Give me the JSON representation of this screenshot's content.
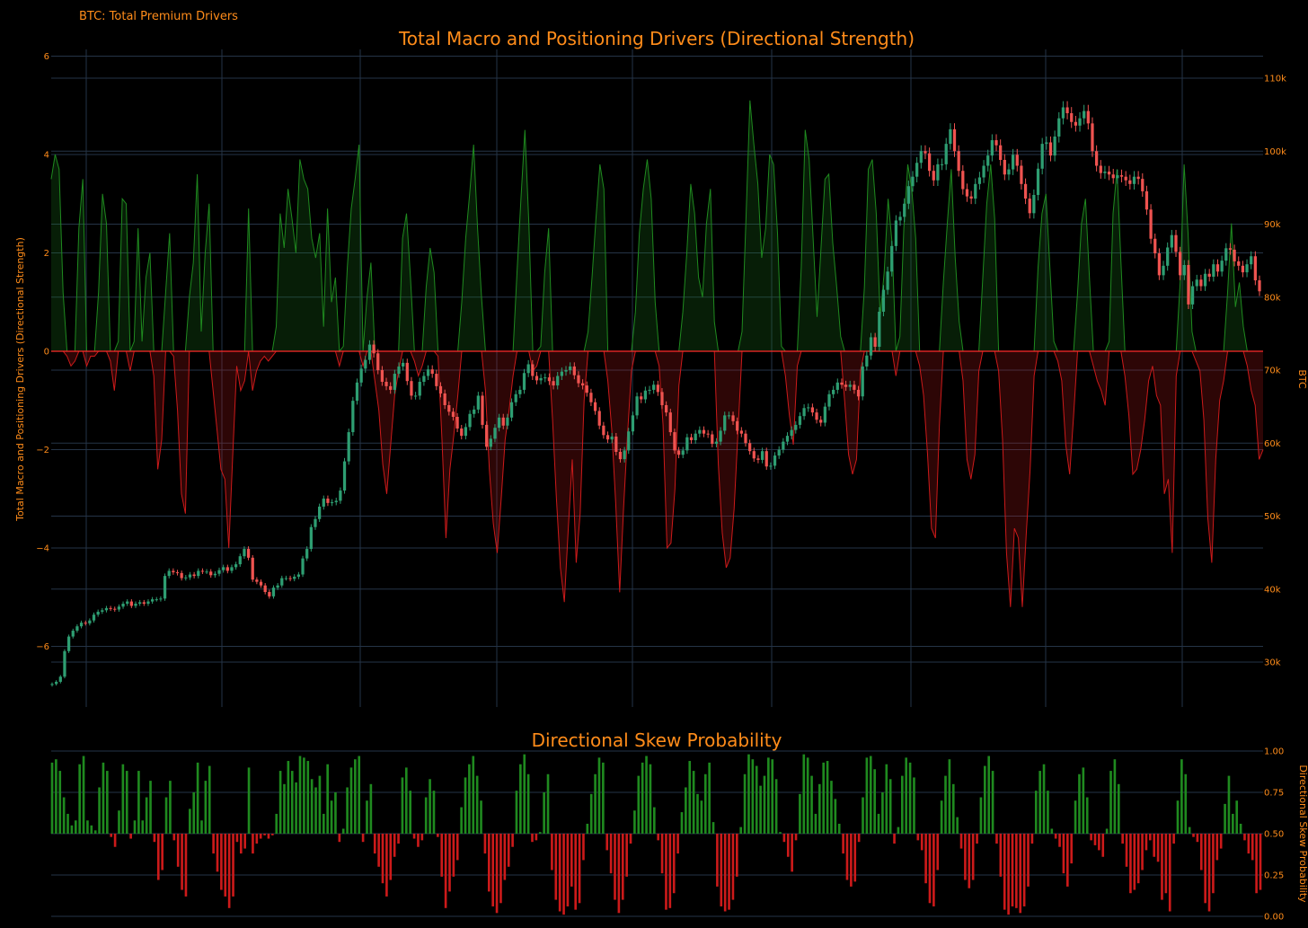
{
  "header": {
    "dashboard_label": "BTC: Total Premium Drivers"
  },
  "colors": {
    "background": "#000000",
    "text": "#ff8c1a",
    "grid": "#253447",
    "positive": "#1f8a1f",
    "negative": "#cc1a1a",
    "candle_up": "#2e9e72",
    "candle_down": "#ef5350"
  },
  "chart_data": [
    {
      "type": "area",
      "title": "Total Macro and Positioning Drivers (Directional Strength)",
      "ylabel": "Total Macro and Positioning Drivers (Directional Strength)",
      "ylim": [
        -6.6,
        6.0
      ],
      "yticks": [
        6,
        4,
        2,
        0,
        -2,
        -4,
        -6
      ],
      "ytick_labels": [
        "6",
        "4",
        "2",
        "0",
        "−2",
        "−4",
        "−6"
      ],
      "grid": true,
      "series": [
        {
          "name": "",
          "style": "filled area above and below zero",
          "values": [
            3.5,
            4.0,
            3.7,
            1.2,
            -0.1,
            -0.3,
            -0.2,
            2.5,
            3.5,
            -0.3,
            -0.1,
            -0.1,
            1.2,
            3.2,
            2.6,
            -0.2,
            -0.8,
            0.2,
            3.1,
            3.0,
            -0.4,
            0.2,
            2.5,
            0.2,
            1.5,
            2.0,
            -0.5,
            -2.4,
            -1.8,
            1.2,
            2.4,
            -0.1,
            -1.2,
            -2.9,
            -3.3,
            1.1,
            1.8,
            3.6,
            0.4,
            2.0,
            3.0,
            -0.8,
            -1.6,
            -2.4,
            -2.6,
            -4.0,
            -2.1,
            -0.3,
            -0.8,
            -0.6,
            2.9,
            -0.8,
            -0.4,
            -0.2,
            -0.1,
            -0.2,
            -0.1,
            0.5,
            2.8,
            2.1,
            3.3,
            2.7,
            2.0,
            3.9,
            3.5,
            3.3,
            2.3,
            1.9,
            2.4,
            0.5,
            2.9,
            1.0,
            1.5,
            -0.3,
            0.1,
            1.7,
            2.9,
            3.5,
            4.2,
            -0.3,
            1.1,
            1.8,
            -0.6,
            -1.2,
            -2.3,
            -2.9,
            -1.9,
            -0.9,
            -0.4,
            2.3,
            2.8,
            1.5,
            -0.2,
            -0.5,
            -0.3,
            1.3,
            2.1,
            1.6,
            -0.1,
            -1.8,
            -3.8,
            -2.4,
            -1.7,
            -0.9,
            1.0,
            2.3,
            3.2,
            4.2,
            2.5,
            1.1,
            -0.8,
            -2.4,
            -3.5,
            -4.1,
            -3.0,
            -1.8,
            -1.2,
            -0.5,
            1.6,
            3.1,
            4.5,
            2.6,
            -0.4,
            -0.3,
            0.1,
            1.6,
            2.5,
            -1.4,
            -3.0,
            -4.4,
            -5.1,
            -3.6,
            -2.2,
            -4.3,
            -3.3,
            -1.0,
            0.4,
            1.5,
            2.7,
            3.8,
            3.3,
            -0.6,
            -1.6,
            -3.1,
            -4.9,
            -3.2,
            -1.7,
            -0.4,
            0.8,
            2.4,
            3.3,
            3.9,
            3.1,
            1.0,
            -0.3,
            -1.5,
            -4.0,
            -3.9,
            -2.8,
            -0.7,
            0.8,
            2.0,
            3.4,
            2.8,
            1.5,
            1.1,
            2.6,
            3.3,
            0.6,
            -2.3,
            -3.7,
            -4.4,
            -4.2,
            -3.2,
            -1.6,
            0.4,
            2.7,
            5.1,
            4.2,
            3.4,
            1.9,
            2.5,
            4.0,
            3.8,
            2.4,
            0.1,
            -0.5,
            -1.3,
            -1.9,
            -0.3,
            1.7,
            4.5,
            3.9,
            2.3,
            0.7,
            2.1,
            3.5,
            3.6,
            2.2,
            1.3,
            0.3,
            -1.0,
            -2.1,
            -2.5,
            -2.2,
            -0.4,
            1.3,
            3.7,
            3.9,
            2.8,
            0.7,
            1.6,
            3.1,
            2.2,
            -0.5,
            0.3,
            2.5,
            3.8,
            3.3,
            2.3,
            -0.3,
            -0.9,
            -2.1,
            -3.6,
            -3.8,
            -1.5,
            1.4,
            2.6,
            3.7,
            1.9,
            0.6,
            -0.6,
            -2.2,
            -2.6,
            -2.1,
            -0.4,
            1.5,
            3.0,
            3.8,
            2.7,
            -0.4,
            -1.8,
            -4.1,
            -5.2,
            -3.6,
            -3.8,
            -5.2,
            -3.7,
            -2.4,
            -0.5,
            1.7,
            2.8,
            3.2,
            1.7,
            0.2,
            -0.2,
            -0.6,
            -1.9,
            -2.5,
            -1.3,
            1.2,
            2.6,
            3.1,
            1.5,
            -0.3,
            -0.6,
            -0.8,
            -1.1,
            0.2,
            2.8,
            3.7,
            1.8,
            -0.5,
            -1.3,
            -2.5,
            -2.4,
            -2.0,
            -1.4,
            -0.6,
            -0.3,
            -0.9,
            -1.1,
            -2.9,
            -2.6,
            -4.1,
            -0.5,
            1.4,
            3.8,
            2.4,
            0.4,
            -0.2,
            -0.4,
            -1.4,
            -3.4,
            -4.3,
            -2.2,
            -1.0,
            -0.6,
            1.2,
            2.6,
            0.9,
            1.4,
            0.5,
            -0.3,
            -0.8,
            -1.1,
            -2.2,
            -2.0
          ]
        }
      ]
    },
    {
      "type": "line",
      "title": "",
      "ylabel": "BTC",
      "ylim": [
        24000,
        113000
      ],
      "yticks": [
        110000,
        100000,
        90000,
        80000,
        70000,
        60000,
        50000,
        40000,
        30000
      ],
      "ytick_labels": [
        "110k",
        "100k",
        "90k",
        "80k",
        "70k",
        "60k",
        "50k",
        "40k",
        "30k"
      ],
      "series": [
        {
          "name": "",
          "style": "candlestick (close path shown)",
          "values": [
            27000,
            27300,
            28000,
            31500,
            33500,
            34300,
            34900,
            35400,
            35300,
            35700,
            36500,
            36900,
            37100,
            37400,
            37300,
            37200,
            37600,
            38000,
            38300,
            37700,
            38000,
            38200,
            38000,
            38300,
            38600,
            38600,
            38700,
            41800,
            42500,
            42300,
            42200,
            41500,
            41600,
            42000,
            41800,
            42500,
            42400,
            42400,
            41900,
            42100,
            42600,
            43000,
            42500,
            43000,
            43400,
            44500,
            45500,
            44300,
            41300,
            41000,
            40500,
            39600,
            39000,
            40200,
            40500,
            41500,
            41500,
            41400,
            41700,
            42000,
            44200,
            45500,
            48500,
            49600,
            51300,
            52400,
            51800,
            51900,
            52100,
            53500,
            57500,
            61500,
            65800,
            68300,
            70200,
            71400,
            73500,
            72300,
            70000,
            68400,
            67800,
            67300,
            69500,
            70500,
            71000,
            68500,
            66500,
            66500,
            68400,
            69200,
            70100,
            69500,
            67800,
            66800,
            65200,
            64300,
            63600,
            62000,
            61000,
            62200,
            64000,
            64600,
            66500,
            62500,
            59500,
            60600,
            62100,
            63500,
            62400,
            63500,
            65600,
            66700,
            67300,
            69600,
            70800,
            69200,
            68600,
            68900,
            69000,
            68500,
            67900,
            69200,
            69800,
            70000,
            70500,
            69300,
            68200,
            67900,
            66900,
            65600,
            64400,
            62400,
            61100,
            60500,
            60900,
            58800,
            57800,
            59000,
            61600,
            63800,
            66400,
            66000,
            67200,
            67300,
            68000,
            67000,
            65200,
            64200,
            61500,
            59000,
            58400,
            59000,
            60800,
            60400,
            61300,
            61800,
            61300,
            61200,
            59900,
            60200,
            61700,
            63800,
            63800,
            63000,
            61700,
            61300,
            60000,
            58900,
            57900,
            57700,
            58900,
            56800,
            56900,
            58300,
            59100,
            60200,
            61000,
            61800,
            62500,
            63700,
            64800,
            64900,
            64200,
            63200,
            62800,
            65000,
            66700,
            67300,
            68300,
            68000,
            67700,
            68000,
            67300,
            66400,
            70500,
            72000,
            74500,
            73200,
            78000,
            81000,
            83500,
            87000,
            90500,
            91000,
            92800,
            95200,
            96500,
            98400,
            100000,
            99700,
            97300,
            96000,
            98200,
            98200,
            101000,
            103000,
            100000,
            97300,
            94800,
            93800,
            93500,
            95500,
            96400,
            98000,
            99400,
            101500,
            100800,
            98800,
            96800,
            97500,
            99500,
            98000,
            95500,
            93500,
            91500,
            94000,
            97600,
            101000,
            101200,
            99400,
            102000,
            104500,
            106000,
            105200,
            104000,
            103500,
            104500,
            105500,
            103800,
            100000,
            98000,
            97000,
            97200,
            96800,
            96300,
            96700,
            96500,
            96000,
            95500,
            96500,
            96200,
            94500,
            92000,
            88000,
            86000,
            83000,
            84300,
            86800,
            88500,
            86200,
            83000,
            84400,
            79000,
            81500,
            82400,
            81500,
            83200,
            82800,
            84500,
            83500,
            85000,
            86700,
            86500,
            84900,
            84300,
            83400,
            84500,
            85600,
            82300,
            80800
          ]
        }
      ]
    },
    {
      "type": "bar",
      "title": "Directional Skew Probability",
      "ylabel": "Directional Skew Probability",
      "ylim": [
        0.0,
        1.0
      ],
      "yticks": [
        1.0,
        0.75,
        0.5,
        0.25,
        0.0
      ],
      "ytick_labels": [
        "1.00",
        "0.75",
        "0.50",
        "0.25",
        "0.00"
      ],
      "baseline": 0.5,
      "series": [
        {
          "name": "",
          "values": [
            0.93,
            0.95,
            0.88,
            0.72,
            0.62,
            0.55,
            0.58,
            0.92,
            0.97,
            0.58,
            0.55,
            0.52,
            0.78,
            0.93,
            0.88,
            0.48,
            0.42,
            0.64,
            0.92,
            0.88,
            0.47,
            0.58,
            0.88,
            0.58,
            0.72,
            0.82,
            0.45,
            0.22,
            0.28,
            0.72,
            0.82,
            0.46,
            0.3,
            0.16,
            0.12,
            0.65,
            0.75,
            0.93,
            0.58,
            0.82,
            0.91,
            0.38,
            0.27,
            0.16,
            0.12,
            0.05,
            0.12,
            0.45,
            0.38,
            0.41,
            0.9,
            0.38,
            0.44,
            0.47,
            0.49,
            0.47,
            0.49,
            0.62,
            0.88,
            0.8,
            0.94,
            0.88,
            0.81,
            0.97,
            0.96,
            0.94,
            0.83,
            0.78,
            0.85,
            0.62,
            0.92,
            0.7,
            0.75,
            0.45,
            0.53,
            0.78,
            0.9,
            0.95,
            0.97,
            0.45,
            0.7,
            0.8,
            0.38,
            0.3,
            0.2,
            0.12,
            0.22,
            0.36,
            0.44,
            0.84,
            0.9,
            0.76,
            0.47,
            0.42,
            0.46,
            0.72,
            0.83,
            0.76,
            0.48,
            0.24,
            0.05,
            0.15,
            0.24,
            0.34,
            0.66,
            0.84,
            0.92,
            0.97,
            0.85,
            0.7,
            0.38,
            0.15,
            0.06,
            0.02,
            0.08,
            0.22,
            0.3,
            0.42,
            0.76,
            0.92,
            0.98,
            0.86,
            0.45,
            0.46,
            0.51,
            0.75,
            0.86,
            0.28,
            0.1,
            0.03,
            0.01,
            0.06,
            0.18,
            0.04,
            0.08,
            0.34,
            0.56,
            0.74,
            0.86,
            0.96,
            0.93,
            0.4,
            0.26,
            0.1,
            0.02,
            0.1,
            0.24,
            0.44,
            0.64,
            0.85,
            0.93,
            0.97,
            0.92,
            0.66,
            0.46,
            0.26,
            0.04,
            0.05,
            0.14,
            0.38,
            0.63,
            0.78,
            0.94,
            0.88,
            0.74,
            0.7,
            0.86,
            0.93,
            0.57,
            0.18,
            0.06,
            0.03,
            0.04,
            0.1,
            0.24,
            0.54,
            0.86,
            0.98,
            0.95,
            0.91,
            0.79,
            0.85,
            0.96,
            0.95,
            0.83,
            0.51,
            0.45,
            0.36,
            0.27,
            0.46,
            0.74,
            0.98,
            0.96,
            0.85,
            0.62,
            0.8,
            0.93,
            0.94,
            0.82,
            0.71,
            0.56,
            0.38,
            0.22,
            0.18,
            0.21,
            0.45,
            0.72,
            0.96,
            0.97,
            0.89,
            0.62,
            0.75,
            0.92,
            0.83,
            0.44,
            0.54,
            0.85,
            0.96,
            0.93,
            0.84,
            0.46,
            0.4,
            0.2,
            0.08,
            0.06,
            0.28,
            0.7,
            0.85,
            0.95,
            0.8,
            0.6,
            0.41,
            0.22,
            0.17,
            0.22,
            0.44,
            0.72,
            0.91,
            0.97,
            0.88,
            0.44,
            0.24,
            0.04,
            0.01,
            0.06,
            0.05,
            0.02,
            0.06,
            0.18,
            0.44,
            0.76,
            0.88,
            0.92,
            0.76,
            0.53,
            0.47,
            0.42,
            0.26,
            0.18,
            0.32,
            0.7,
            0.86,
            0.9,
            0.72,
            0.46,
            0.43,
            0.4,
            0.36,
            0.53,
            0.88,
            0.95,
            0.8,
            0.44,
            0.3,
            0.14,
            0.16,
            0.2,
            0.28,
            0.4,
            0.46,
            0.36,
            0.33,
            0.1,
            0.14,
            0.03,
            0.44,
            0.7,
            0.95,
            0.86,
            0.54,
            0.48,
            0.45,
            0.28,
            0.08,
            0.03,
            0.14,
            0.34,
            0.41,
            0.68,
            0.85,
            0.62,
            0.7,
            0.56,
            0.46,
            0.38,
            0.34,
            0.14,
            0.16
          ]
        }
      ]
    }
  ]
}
